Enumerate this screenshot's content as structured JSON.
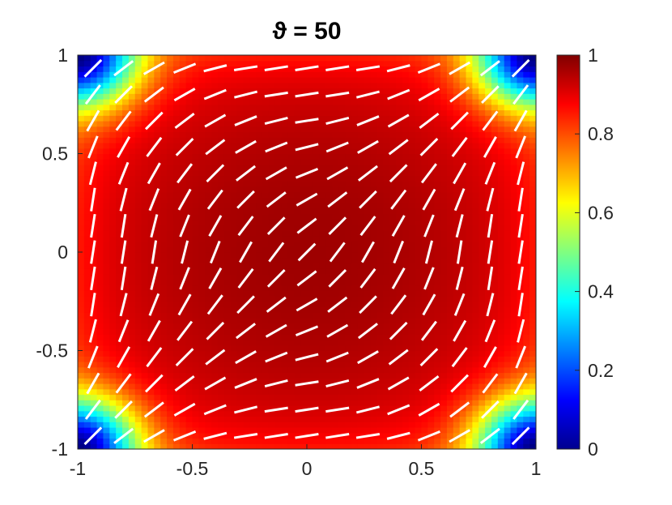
{
  "chart_data": {
    "type": "heatmap",
    "title": "ϑ = 50",
    "xlabel": "",
    "ylabel": "",
    "xlim": [
      -1,
      1
    ],
    "ylim": [
      -1,
      1
    ],
    "x_ticks": [
      "-1",
      "-0.5",
      "0",
      "0.5",
      "1"
    ],
    "y_ticks": [
      "1",
      "0.5",
      "0",
      "-0.5",
      "-1"
    ],
    "colorbar": {
      "colormap": "jet",
      "range": [
        0,
        1
      ],
      "ticks": [
        "1",
        "0.8",
        "0.6",
        "0.4",
        "0.2",
        "0"
      ]
    },
    "field": {
      "description_values": "order parameter magnitude, ~1 in the bulk, dropping to ~0 at the four corners",
      "center_value": 1.0,
      "corner_value": 0.0
    },
    "director_overlay": {
      "color": "#ffffff",
      "grid_n": 15
    },
    "grid": false
  }
}
